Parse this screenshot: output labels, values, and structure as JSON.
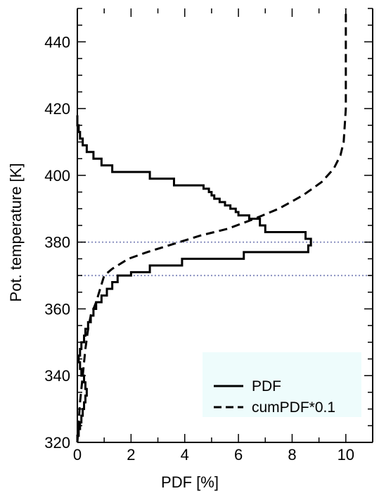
{
  "chart_data": {
    "type": "line",
    "title": "",
    "xlabel": "PDF [%]",
    "ylabel": "Pot. temperature [K]",
    "xlim": [
      0,
      11
    ],
    "ylim": [
      320,
      450
    ],
    "xticks": [
      0,
      2,
      4,
      6,
      8,
      10
    ],
    "yticks": [
      320,
      340,
      360,
      380,
      400,
      420,
      440
    ],
    "grid": false,
    "reference_lines": {
      "y": [
        370,
        380
      ],
      "color": "#8a90c0"
    },
    "legend": {
      "position": "bottom-right",
      "background": "#eefcfc",
      "entries": [
        "PDF",
        "cumPDF*0.1"
      ]
    },
    "series": [
      {
        "name": "PDF",
        "style": "solid-step",
        "color": "#000000",
        "x": [
          0.0,
          0.05,
          0.1,
          0.15,
          0.2,
          0.25,
          0.3,
          0.35,
          0.3,
          0.25,
          0.15,
          0.1,
          0.05,
          0.1,
          0.15,
          0.25,
          0.3,
          0.4,
          0.5,
          0.6,
          0.7,
          0.9,
          1.1,
          1.3,
          1.5,
          2.0,
          2.7,
          3.9,
          6.2,
          8.6,
          8.7,
          8.5,
          7.0,
          6.8,
          6.4,
          6.0,
          5.9,
          5.7,
          5.5,
          5.3,
          5.1,
          5.0,
          4.9,
          4.7,
          3.6,
          2.7,
          1.3,
          0.9,
          0.6,
          0.35,
          0.2,
          0.1,
          0.05,
          0.0
        ],
        "y": [
          322,
          324,
          326,
          328,
          330,
          332,
          334,
          336,
          338,
          340,
          342,
          344,
          346,
          348,
          350,
          352,
          354,
          356,
          358,
          360,
          362,
          364,
          366,
          368,
          370,
          371,
          373,
          375,
          377,
          379,
          381,
          383,
          385,
          387,
          388,
          389,
          390,
          391,
          392,
          393,
          394,
          395,
          396,
          397,
          399,
          401,
          403,
          405,
          407,
          409,
          411,
          413,
          415,
          418
        ]
      },
      {
        "name": "cumPDF*0.1",
        "style": "dashed",
        "color": "#000000",
        "x": [
          0.0,
          0.05,
          0.1,
          0.2,
          0.3,
          0.4,
          0.5,
          0.7,
          0.85,
          1.0,
          1.3,
          1.9,
          2.6,
          3.4,
          4.6,
          5.6,
          6.6,
          7.5,
          8.4,
          9.1,
          9.55,
          9.8,
          9.92,
          10.0,
          10.0
        ],
        "y": [
          320,
          326,
          332,
          340,
          348,
          354,
          358,
          362,
          366,
          370,
          372,
          375,
          377,
          379,
          382,
          384,
          387,
          390,
          394,
          398,
          402,
          406,
          410,
          420,
          450
        ]
      }
    ]
  }
}
